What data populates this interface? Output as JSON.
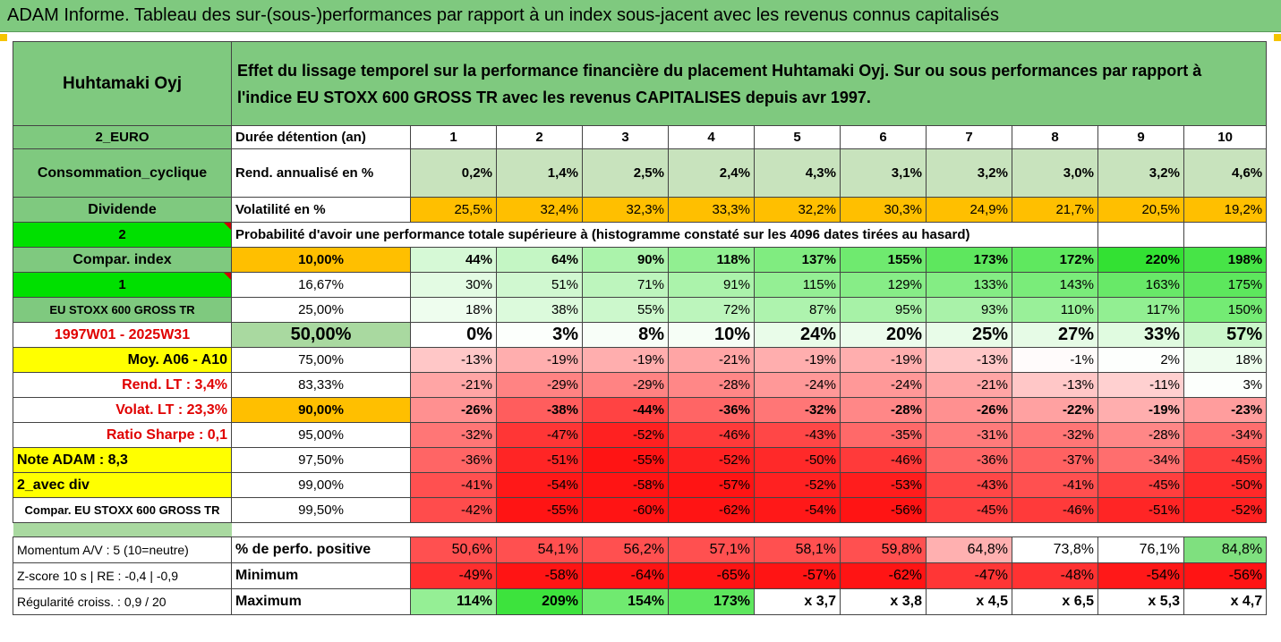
{
  "title": "ADAM Informe. Tableau des sur-(sous-)performances par rapport à un index sous-jacent avec les revenus connus capitalisés",
  "header": {
    "company": "Huhtamaki Oyj",
    "description_line1": "Effet du lissage temporel sur la performance financière du placement Huhtamaki Oyj. Sur ou sous performances par rapport à",
    "description_line2": "l'indice EU STOXX 600 GROSS TR avec les revenus CAPITALISES depuis avr 1997."
  },
  "years": [
    "1",
    "2",
    "3",
    "4",
    "5",
    "6",
    "7",
    "8",
    "9",
    "10"
  ],
  "stats": {
    "duree_label": "Durée détention (an)",
    "rend_label": "Rend. annualisé en %",
    "rend_values": [
      "0,2%",
      "1,4%",
      "2,5%",
      "2,4%",
      "4,3%",
      "3,1%",
      "3,2%",
      "3,0%",
      "3,2%",
      "4,6%"
    ],
    "vol_label": "Volatilité en %",
    "vol_values": [
      "25,5%",
      "32,4%",
      "32,3%",
      "33,3%",
      "32,2%",
      "30,3%",
      "24,9%",
      "21,7%",
      "20,5%",
      "19,2%"
    ],
    "prob_label": "Probabilité d'avoir une performance totale supérieure à (histogramme constaté sur les 4096 dates tirées au hasard)"
  },
  "left_labels": {
    "currency": "2_EURO",
    "sector": "Consommation_cyclique",
    "dividend": "Dividende",
    "num2": "2",
    "compar_index": "Compar. index",
    "num1": "1",
    "index_name": "EU STOXX 600 GROSS TR",
    "period": "1997W01 - 2025W31",
    "moy": "Moy. A06 - A10",
    "rend_lt": "Rend. LT :   3,4%",
    "volat_lt": "Volat. LT :   23,3%",
    "sharpe": "Ratio Sharpe :   0,1",
    "note": "Note ADAM : 8,3",
    "avec_div": "2_avec div",
    "compar_full": "Compar. EU STOXX 600 GROSS TR"
  },
  "prob_rows": [
    {
      "pct": "10,00%",
      "values": [
        "44%",
        "64%",
        "90%",
        "118%",
        "137%",
        "155%",
        "173%",
        "172%",
        "220%",
        "198%"
      ]
    },
    {
      "pct": "16,67%",
      "values": [
        "30%",
        "51%",
        "71%",
        "91%",
        "115%",
        "129%",
        "133%",
        "143%",
        "163%",
        "175%"
      ]
    },
    {
      "pct": "25,00%",
      "values": [
        "18%",
        "38%",
        "55%",
        "72%",
        "87%",
        "95%",
        "93%",
        "110%",
        "117%",
        "150%"
      ]
    },
    {
      "pct": "50,00%",
      "values": [
        "0%",
        "3%",
        "8%",
        "10%",
        "24%",
        "20%",
        "25%",
        "27%",
        "33%",
        "57%"
      ]
    },
    {
      "pct": "75,00%",
      "values": [
        "-13%",
        "-19%",
        "-19%",
        "-21%",
        "-19%",
        "-19%",
        "-13%",
        "-1%",
        "2%",
        "18%"
      ]
    },
    {
      "pct": "83,33%",
      "values": [
        "-21%",
        "-29%",
        "-29%",
        "-28%",
        "-24%",
        "-24%",
        "-21%",
        "-13%",
        "-11%",
        "3%"
      ]
    },
    {
      "pct": "90,00%",
      "values": [
        "-26%",
        "-38%",
        "-44%",
        "-36%",
        "-32%",
        "-28%",
        "-26%",
        "-22%",
        "-19%",
        "-23%"
      ]
    },
    {
      "pct": "95,00%",
      "values": [
        "-32%",
        "-47%",
        "-52%",
        "-46%",
        "-43%",
        "-35%",
        "-31%",
        "-32%",
        "-28%",
        "-34%"
      ]
    },
    {
      "pct": "97,50%",
      "values": [
        "-36%",
        "-51%",
        "-55%",
        "-52%",
        "-50%",
        "-46%",
        "-36%",
        "-37%",
        "-34%",
        "-45%"
      ]
    },
    {
      "pct": "99,00%",
      "values": [
        "-41%",
        "-54%",
        "-58%",
        "-57%",
        "-52%",
        "-53%",
        "-43%",
        "-41%",
        "-45%",
        "-50%"
      ]
    },
    {
      "pct": "99,50%",
      "values": [
        "-42%",
        "-55%",
        "-60%",
        "-62%",
        "-54%",
        "-56%",
        "-45%",
        "-46%",
        "-51%",
        "-52%"
      ]
    }
  ],
  "bottom": {
    "momentum": "Momentum A/V : 5 (10=neutre)",
    "zscore": "Z-score 10 s  | RE : -0,4  | -0,9",
    "regularite": "Régularité croiss. : 0,9 / 20",
    "perf_label": "% de perfo. positive",
    "perf_values": [
      "50,6%",
      "54,1%",
      "56,2%",
      "57,1%",
      "58,1%",
      "59,8%",
      "64,8%",
      "73,8%",
      "76,1%",
      "84,8%"
    ],
    "min_label": "Minimum",
    "min_values": [
      "-49%",
      "-58%",
      "-64%",
      "-65%",
      "-57%",
      "-62%",
      "-47%",
      "-48%",
      "-54%",
      "-56%"
    ],
    "max_label": "Maximum",
    "max_values": [
      "114%",
      "209%",
      "154%",
      "173%",
      "x 3,7",
      "x 3,8",
      "x 4,5",
      "x 6,5",
      "x 5,3",
      "x 4,7"
    ]
  },
  "colors": {
    "header_green": "#7fc97f",
    "light_green": "#a9d9a0",
    "orange": "#ffbf00",
    "yellow": "#ffff00",
    "bright_green": "#00e000",
    "red": "#ff0000"
  }
}
